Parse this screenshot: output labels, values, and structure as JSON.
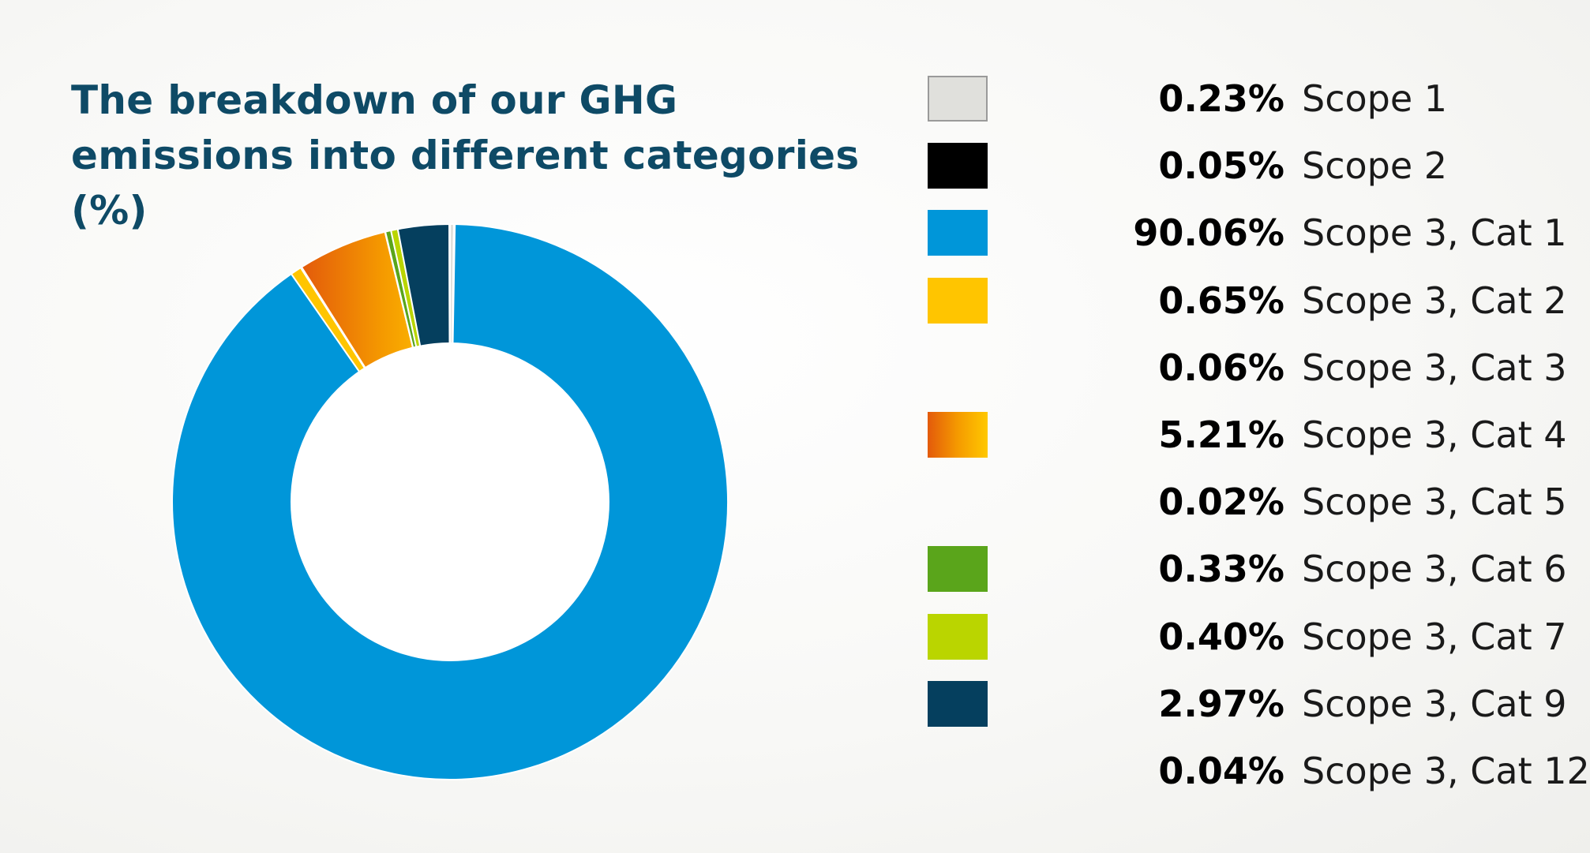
{
  "chart_data": {
    "type": "pie",
    "donut": true,
    "title": "The breakdown of our GHG emissions into different categories (%)",
    "unit": "%",
    "start_angle_deg": 0,
    "direction": "clockwise",
    "slices": [
      {
        "label": "Scope 1",
        "value": 0.23,
        "value_label": "0.23%",
        "color": "#e0e0dc",
        "border": "#9a9a9a",
        "show_swatch": true
      },
      {
        "label": "Scope 2",
        "value": 0.05,
        "value_label": "0.05%",
        "color": "#000000",
        "show_swatch": true
      },
      {
        "label": "Scope 3, Cat 1",
        "value": 90.06,
        "value_label": "90.06%",
        "color": "#0096d9",
        "show_swatch": true
      },
      {
        "label": "Scope 3, Cat 2",
        "value": 0.65,
        "value_label": "0.65%",
        "color": "#ffc500",
        "show_swatch": true
      },
      {
        "label": "Scope 3, Cat 3",
        "value": 0.06,
        "value_label": "0.06%",
        "color": "#ffffff",
        "show_swatch": false
      },
      {
        "label": "Scope 3, Cat 4",
        "value": 5.21,
        "value_label": "5.21%",
        "color": "#ef8a00",
        "gradient": [
          "#e35a0b",
          "#f59a00",
          "#ffc800"
        ],
        "show_swatch": true
      },
      {
        "label": "Scope 3, Cat 5",
        "value": 0.02,
        "value_label": "0.02%",
        "color": "#ffffff",
        "show_swatch": false
      },
      {
        "label": "Scope 3, Cat 6",
        "value": 0.33,
        "value_label": "0.33%",
        "color": "#5aa51b",
        "show_swatch": true
      },
      {
        "label": "Scope 3, Cat 7",
        "value": 0.4,
        "value_label": "0.40%",
        "color": "#bad500",
        "show_swatch": true
      },
      {
        "label": "Scope 3, Cat 9",
        "value": 2.97,
        "value_label": "2.97%",
        "color": "#053f5e",
        "show_swatch": true
      },
      {
        "label": "Scope 3, Cat 12",
        "value": 0.04,
        "value_label": "0.04%",
        "color": "#ffffff",
        "show_swatch": false
      }
    ],
    "legend_position": "right"
  }
}
